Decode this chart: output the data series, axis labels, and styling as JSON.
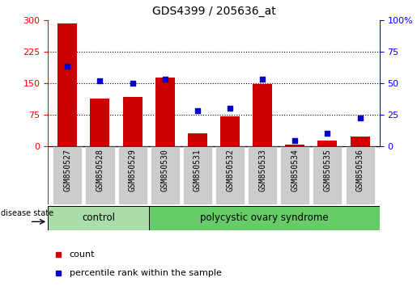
{
  "title": "GDS4399 / 205636_at",
  "samples": [
    "GSM850527",
    "GSM850528",
    "GSM850529",
    "GSM850530",
    "GSM850531",
    "GSM850532",
    "GSM850533",
    "GSM850534",
    "GSM850535",
    "GSM850536"
  ],
  "counts": [
    292,
    112,
    116,
    162,
    30,
    70,
    148,
    3,
    12,
    22
  ],
  "percentiles": [
    63,
    52,
    50,
    53,
    28,
    30,
    53,
    4,
    10,
    22
  ],
  "ylim_left": [
    0,
    300
  ],
  "ylim_right": [
    0,
    100
  ],
  "yticks_left": [
    0,
    75,
    150,
    225,
    300
  ],
  "yticks_right": [
    0,
    25,
    50,
    75,
    100
  ],
  "bar_color": "#cc0000",
  "dot_color": "#0000cc",
  "tick_bg": "#cccccc",
  "control_color": "#aaddaa",
  "pcos_color": "#66cc66",
  "control_label": "control",
  "pcos_label": "polycystic ovary syndrome",
  "disease_state_label": "disease state",
  "legend_count": "count",
  "legend_percentile": "percentile rank within the sample",
  "n_control": 3,
  "n_pcos": 7
}
